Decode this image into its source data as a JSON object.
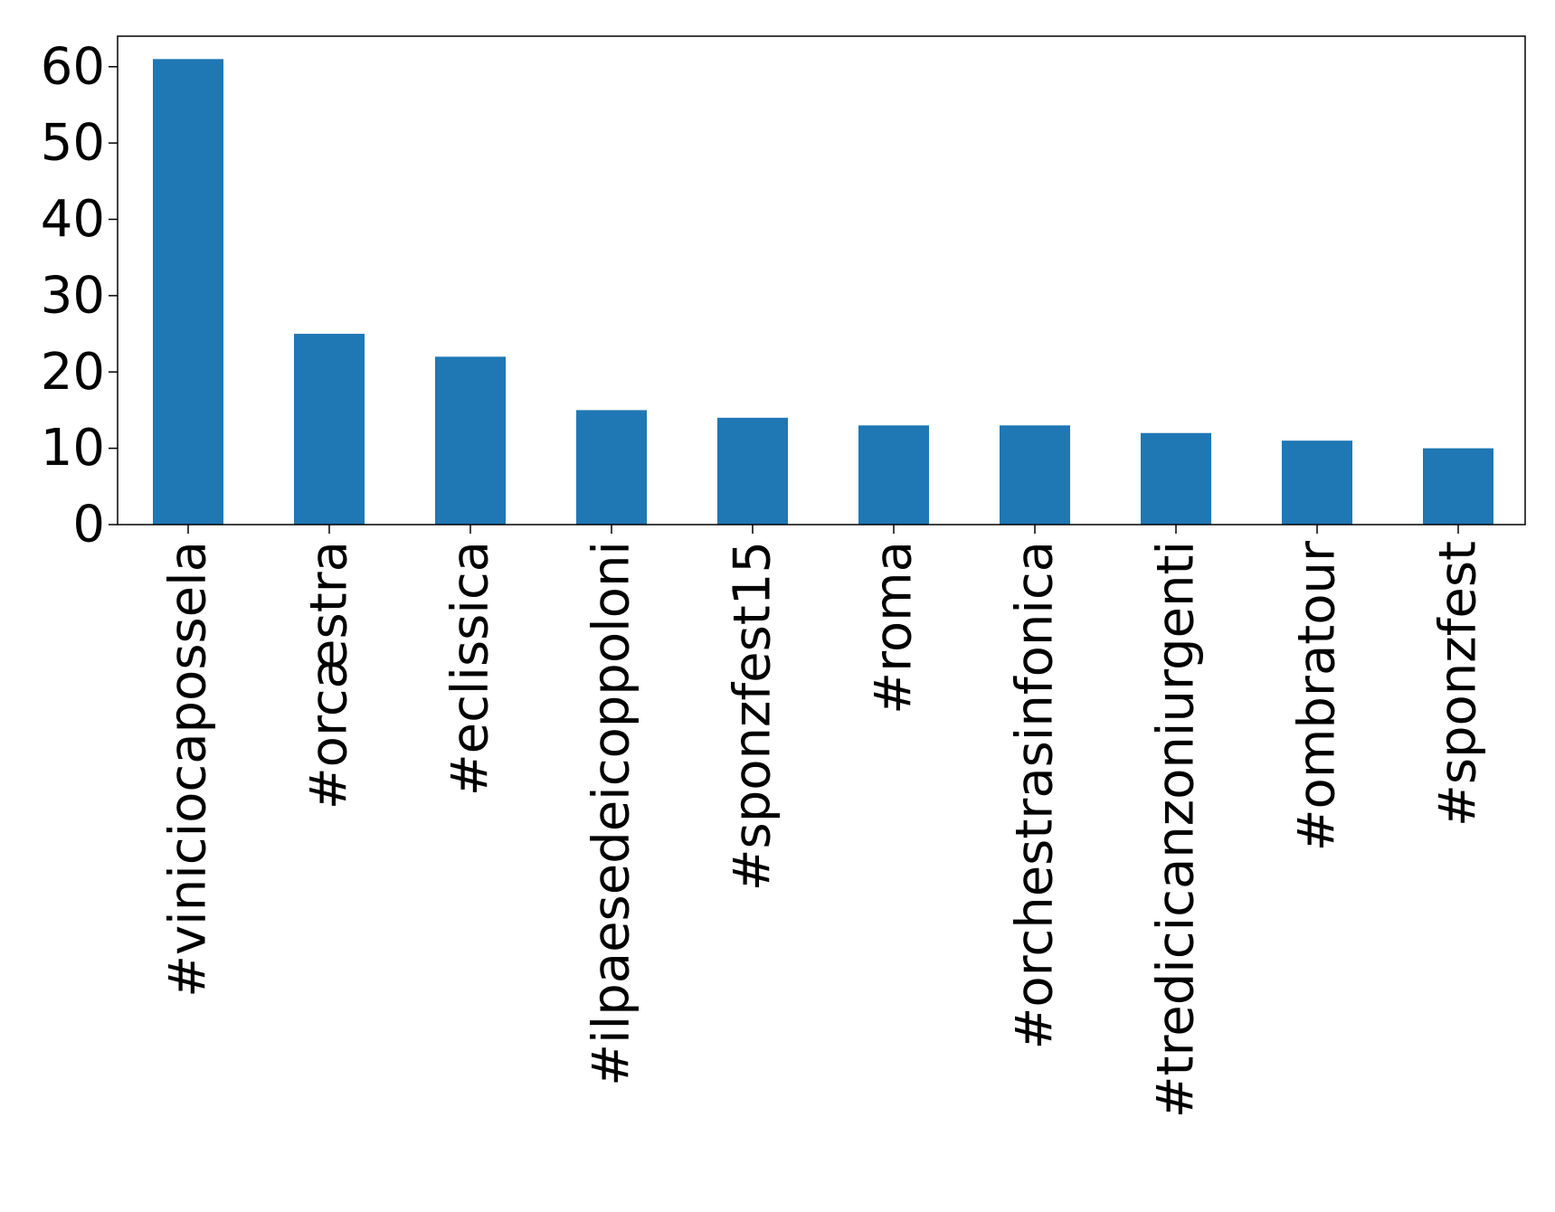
{
  "chart_data": {
    "type": "bar",
    "title": "",
    "xlabel": "",
    "ylabel": "",
    "categories": [
      "#viniciocapossela",
      "#orcæstra",
      "#eclissica",
      "#ilpaesedeicoppoloni",
      "#sponzfest15",
      "#roma",
      "#orchestrasinfonica",
      "#tredicicanzoniurgenti",
      "#ombratour",
      "#sponzfest"
    ],
    "values": [
      61,
      25,
      22,
      15,
      14,
      13,
      13,
      12,
      11,
      10
    ],
    "ylim": [
      0,
      64
    ],
    "yticks": [
      0,
      10,
      20,
      30,
      40,
      50,
      60
    ],
    "ytick_labels": [
      "0",
      "10",
      "20",
      "30",
      "40",
      "50",
      "60"
    ],
    "grid": false,
    "legend": "none",
    "bar_color": "#1f77b4"
  }
}
